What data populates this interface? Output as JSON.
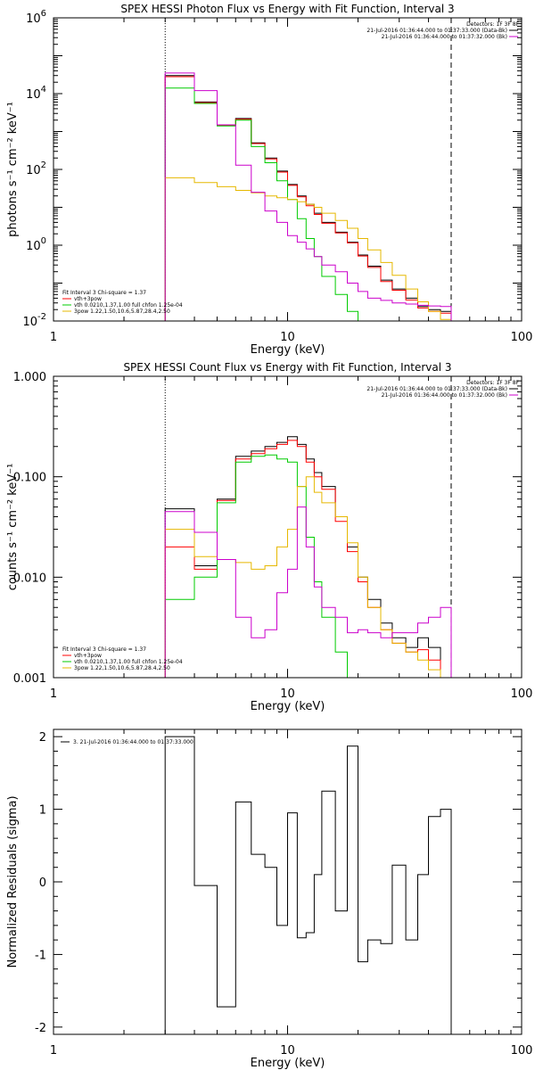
{
  "chart_data": [
    {
      "id": "photon",
      "type": "line",
      "step": true,
      "title": "SPEX HESSI Photon Flux vs Energy with Fit Function, Interval 3",
      "xlabel": "Energy (keV)",
      "ylabel": "photons s⁻¹ cm⁻² keV⁻¹",
      "xlog": true,
      "ylog": true,
      "xlim": [
        1,
        100
      ],
      "ylim": [
        0.01,
        1000000
      ],
      "grid": false,
      "x_ticks": [
        {
          "v": 1,
          "label": "1"
        },
        {
          "v": 10,
          "label": "10"
        },
        {
          "v": 100,
          "label": "100"
        }
      ],
      "y_ticks": [
        {
          "v": 0.01,
          "base": "10",
          "exp": "-2"
        },
        {
          "v": 1,
          "base": "10",
          "exp": "0"
        },
        {
          "v": 100,
          "base": "10",
          "exp": "2"
        },
        {
          "v": 10000,
          "base": "10",
          "exp": "4"
        },
        {
          "v": 1000000,
          "base": "10",
          "exp": "6"
        }
      ],
      "vlines": [
        {
          "x": 3,
          "style": "dotted"
        },
        {
          "x": 50,
          "style": "dashed"
        }
      ],
      "legend_top": [
        "Detectors: 1F 3F 8F",
        "21-Jul-2016 01:36:44.000 to 01:37:33.000 (Data-Bk)",
        "21-Jul-2016 01:36:44.000 to 01:37:32.000 (Bk)"
      ],
      "legend_top_colors": [
        "#000000",
        "#cc00cc"
      ],
      "legend_bottom": [
        "Fit Interval 3   Chi-square = 1.37",
        "vth+3pow",
        "vth 0.0210,1.37,1.00  full chfon 1.25e-04",
        "3pow 1.22,1.50,10.6,5.87,28.4,2.50"
      ],
      "legend_bottom_colors": [
        "#ff0000",
        "#00cc00",
        "#e6b800"
      ],
      "edges": [
        3,
        4,
        5,
        6,
        7,
        8,
        9,
        10,
        11,
        12,
        13,
        14,
        16,
        18,
        20,
        22,
        25,
        28,
        32,
        36,
        40,
        45,
        50
      ],
      "series": [
        {
          "color": "#000000",
          "values": [
            30000,
            6000,
            1500,
            2200,
            500,
            200,
            90,
            40,
            20,
            12,
            7,
            4,
            2.2,
            1.2,
            0.55,
            0.28,
            0.12,
            0.07,
            0.04,
            0.024,
            0.02,
            0.018
          ]
        },
        {
          "color": "#ff0000",
          "values": [
            28000,
            5800,
            1450,
            2100,
            480,
            190,
            85,
            38,
            19,
            11,
            6.5,
            3.8,
            2.1,
            1.15,
            0.52,
            0.26,
            0.11,
            0.065,
            0.036,
            0.022,
            0.018,
            0.016
          ]
        },
        {
          "color": "#00cc00",
          "values": [
            14000,
            5500,
            1400,
            2000,
            400,
            150,
            50,
            16,
            5,
            1.5,
            0.5,
            0.15,
            0.05,
            0.018
          ]
        },
        {
          "color": "#e6b800",
          "values": [
            60,
            45,
            35,
            28,
            24,
            20,
            18,
            16,
            14,
            12,
            10,
            7,
            4.5,
            2.8,
            1.5,
            0.75,
            0.35,
            0.16,
            0.07,
            0.032,
            0.018,
            0.011
          ]
        },
        {
          "color": "#cc00cc",
          "values": [
            35000,
            12000,
            1500,
            130,
            25,
            8,
            4,
            1.8,
            1.2,
            0.8,
            0.5,
            0.3,
            0.2,
            0.1,
            0.06,
            0.04,
            0.035,
            0.03,
            0.028,
            0.026,
            0.025,
            0.024
          ]
        }
      ]
    },
    {
      "id": "count",
      "type": "line",
      "step": true,
      "title": "SPEX HESSI Count Flux vs Energy with Fit Function, Interval 3",
      "xlabel": "Energy (keV)",
      "ylabel": "counts s⁻¹ cm⁻² keV⁻¹",
      "xlog": true,
      "ylog": true,
      "xlim": [
        1,
        100
      ],
      "ylim": [
        0.001,
        1
      ],
      "grid": false,
      "x_ticks": [
        {
          "v": 1,
          "label": "1"
        },
        {
          "v": 10,
          "label": "10"
        },
        {
          "v": 100,
          "label": "100"
        }
      ],
      "y_ticks": [
        {
          "v": 0.001,
          "label": "0.001"
        },
        {
          "v": 0.01,
          "label": "0.010"
        },
        {
          "v": 0.1,
          "label": "0.100"
        },
        {
          "v": 1,
          "label": "1.000"
        }
      ],
      "vlines": [
        {
          "x": 3,
          "style": "dotted"
        },
        {
          "x": 50,
          "style": "dashed"
        }
      ],
      "legend_top": [
        "Detectors: 1F 3F 8F",
        "21-Jul-2016 01:36:44.000 to 01:37:33.000 (Data-Bk)",
        "21-Jul-2016 01:36:44.000 to 01:37:32.000 (Bk)"
      ],
      "legend_top_colors": [
        "#000000",
        "#cc00cc"
      ],
      "legend_bottom": [
        "Fit Interval 3   Chi-square = 1.37",
        "vth+3pow",
        "vth 0.0210,1.37,1.00  full chfon 1.25e-04",
        "3pow 1.22,1.50,10.6,5.87,28.4,2.50"
      ],
      "legend_bottom_colors": [
        "#ff0000",
        "#00cc00",
        "#e6b800"
      ],
      "edges": [
        3,
        4,
        5,
        6,
        7,
        8,
        9,
        10,
        11,
        12,
        13,
        14,
        16,
        18,
        20,
        22,
        25,
        28,
        32,
        36,
        40,
        45,
        50,
        56
      ],
      "series": [
        {
          "color": "#000000",
          "values": [
            0.048,
            0.013,
            0.06,
            0.16,
            0.18,
            0.2,
            0.22,
            0.25,
            0.21,
            0.15,
            0.11,
            0.08,
            0.04,
            0.02,
            0.01,
            0.006,
            0.0035,
            0.0025,
            0.002,
            0.0025,
            0.002,
            0.001
          ]
        },
        {
          "color": "#ff0000",
          "values": [
            0.02,
            0.012,
            0.058,
            0.15,
            0.17,
            0.19,
            0.21,
            0.23,
            0.2,
            0.14,
            0.1,
            0.075,
            0.036,
            0.018,
            0.009,
            0.005,
            0.003,
            0.0022,
            0.0018,
            0.0019,
            0.0015,
            0.0009
          ]
        },
        {
          "color": "#00cc00",
          "values": [
            0.006,
            0.01,
            0.055,
            0.14,
            0.16,
            0.165,
            0.15,
            0.14,
            0.08,
            0.025,
            0.009,
            0.004,
            0.0018,
            0.0009
          ]
        },
        {
          "color": "#e6b800",
          "values": [
            0.03,
            0.016,
            0.015,
            0.014,
            0.012,
            0.013,
            0.02,
            0.03,
            0.08,
            0.1,
            0.07,
            0.055,
            0.04,
            0.022,
            0.01,
            0.005,
            0.003,
            0.0022,
            0.0018,
            0.0015,
            0.0012,
            0.0009,
            0.0007
          ]
        },
        {
          "color": "#cc00cc",
          "values": [
            0.045,
            0.028,
            0.015,
            0.004,
            0.0025,
            0.003,
            0.007,
            0.012,
            0.05,
            0.02,
            0.008,
            0.005,
            0.004,
            0.0028,
            0.003,
            0.0028,
            0.0025,
            0.0028,
            0.0028,
            0.0035,
            0.004,
            0.005
          ]
        }
      ]
    },
    {
      "id": "residuals",
      "type": "line",
      "step": true,
      "title": "",
      "xlabel": "Energy (keV)",
      "ylabel": "Normalized Residuals (sigma)",
      "xlog": true,
      "ylog": false,
      "xlim": [
        1,
        100
      ],
      "ylim": [
        -2.1,
        2.1
      ],
      "grid": false,
      "x_ticks": [
        {
          "v": 1,
          "label": "1"
        },
        {
          "v": 10,
          "label": "10"
        },
        {
          "v": 100,
          "label": "100"
        }
      ],
      "y_ticks": [
        {
          "v": -2,
          "label": "-2"
        },
        {
          "v": -1,
          "label": "-1"
        },
        {
          "v": 0,
          "label": "0"
        },
        {
          "v": 1,
          "label": "1"
        },
        {
          "v": 2,
          "label": "2"
        }
      ],
      "vlines": [],
      "legend_top": [
        "3. 21-Jul-2016 01:36:44.000 to 01:37:33.000"
      ],
      "legend_top_colors": [
        "#000000"
      ],
      "legend_bottom": [],
      "legend_bottom_colors": [],
      "edges": [
        3,
        4,
        5,
        6,
        7,
        8,
        9,
        10,
        11,
        12,
        13,
        14,
        16,
        18,
        20,
        22,
        25,
        28,
        32,
        36,
        40,
        45,
        50
      ],
      "series": [
        {
          "color": "#000000",
          "values": [
            2.0,
            -0.05,
            -1.72,
            1.1,
            0.38,
            0.2,
            -0.6,
            0.95,
            -0.77,
            -0.7,
            0.1,
            1.25,
            -0.4,
            1.87,
            -1.1,
            -0.8,
            -0.85,
            0.23,
            -0.8,
            0.1,
            0.9,
            1.0
          ]
        }
      ]
    }
  ]
}
